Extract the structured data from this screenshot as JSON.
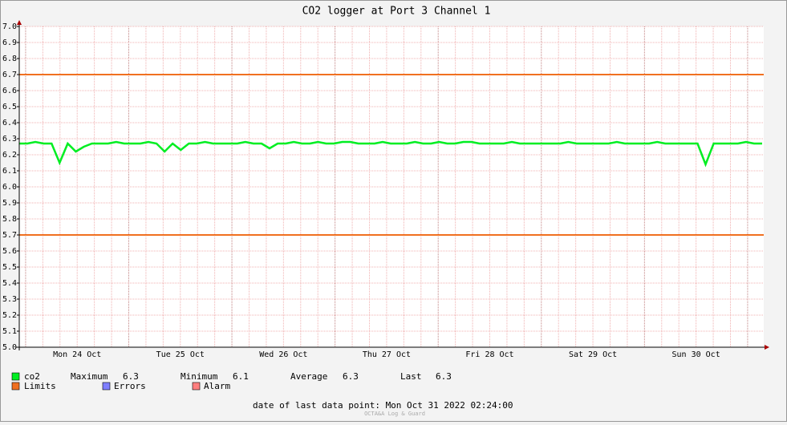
{
  "chart_data": {
    "type": "line",
    "title": "CO2 logger at Port 3 Channel 1",
    "ylim": [
      5,
      7
    ],
    "yticks": [
      {
        "value": 5,
        "label": "5.0"
      },
      5.1,
      5.2,
      5.3,
      5.4,
      5.5,
      5.6,
      5.7,
      5.8,
      5.9,
      {
        "value": 6,
        "label": "6.0"
      },
      6.1,
      6.2,
      6.3,
      6.4,
      6.5,
      6.6,
      6.7,
      6.8,
      6.9,
      {
        "value": 7,
        "label": "7.0"
      }
    ],
    "xticks": [
      "Mon 24 Oct",
      "Tue 25 Oct",
      "Wed 26 Oct",
      "Thu 27 Oct",
      "Fri 28 Oct",
      "Sat 29 Oct",
      "Sun 30 Oct"
    ],
    "grid": true,
    "series": [
      {
        "name": "co2",
        "color": "#00ee22",
        "values": [
          6.27,
          6.27,
          6.28,
          6.27,
          6.27,
          6.15,
          6.27,
          6.22,
          6.25,
          6.27,
          6.27,
          6.27,
          6.28,
          6.27,
          6.27,
          6.27,
          6.28,
          6.27,
          6.22,
          6.27,
          6.23,
          6.27,
          6.27,
          6.28,
          6.27,
          6.27,
          6.27,
          6.27,
          6.28,
          6.27,
          6.27,
          6.24,
          6.27,
          6.27,
          6.28,
          6.27,
          6.27,
          6.28,
          6.27,
          6.27,
          6.28,
          6.28,
          6.27,
          6.27,
          6.27,
          6.28,
          6.27,
          6.27,
          6.27,
          6.28,
          6.27,
          6.27,
          6.28,
          6.27,
          6.27,
          6.28,
          6.28,
          6.27,
          6.27,
          6.27,
          6.27,
          6.28,
          6.27,
          6.27,
          6.27,
          6.27,
          6.27,
          6.27,
          6.28,
          6.27,
          6.27,
          6.27,
          6.27,
          6.27,
          6.28,
          6.27,
          6.27,
          6.27,
          6.27,
          6.28,
          6.27,
          6.27,
          6.27,
          6.27,
          6.27,
          6.14,
          6.27,
          6.27,
          6.27,
          6.27,
          6.28,
          6.27,
          6.27
        ]
      }
    ],
    "stats": [
      {
        "label": "Maximum",
        "value": 6.3
      },
      {
        "label": "Minimum",
        "value": 6.1
      },
      {
        "label": "Average",
        "value": 6.3
      },
      {
        "label": "Last",
        "value": 6.3
      }
    ],
    "limits": {
      "name": "Limits",
      "color": "#f07020",
      "values": [
        6.7,
        5.7
      ]
    },
    "extra_legend": [
      {
        "name": "Errors",
        "color": "#7f7fff"
      },
      {
        "name": "Alarm",
        "color": "#ff7f7f"
      }
    ],
    "footer": "date of last data point:  Mon Oct 31 2022 02:24:00",
    "watermark": "OCTA&A Log & Guard"
  }
}
